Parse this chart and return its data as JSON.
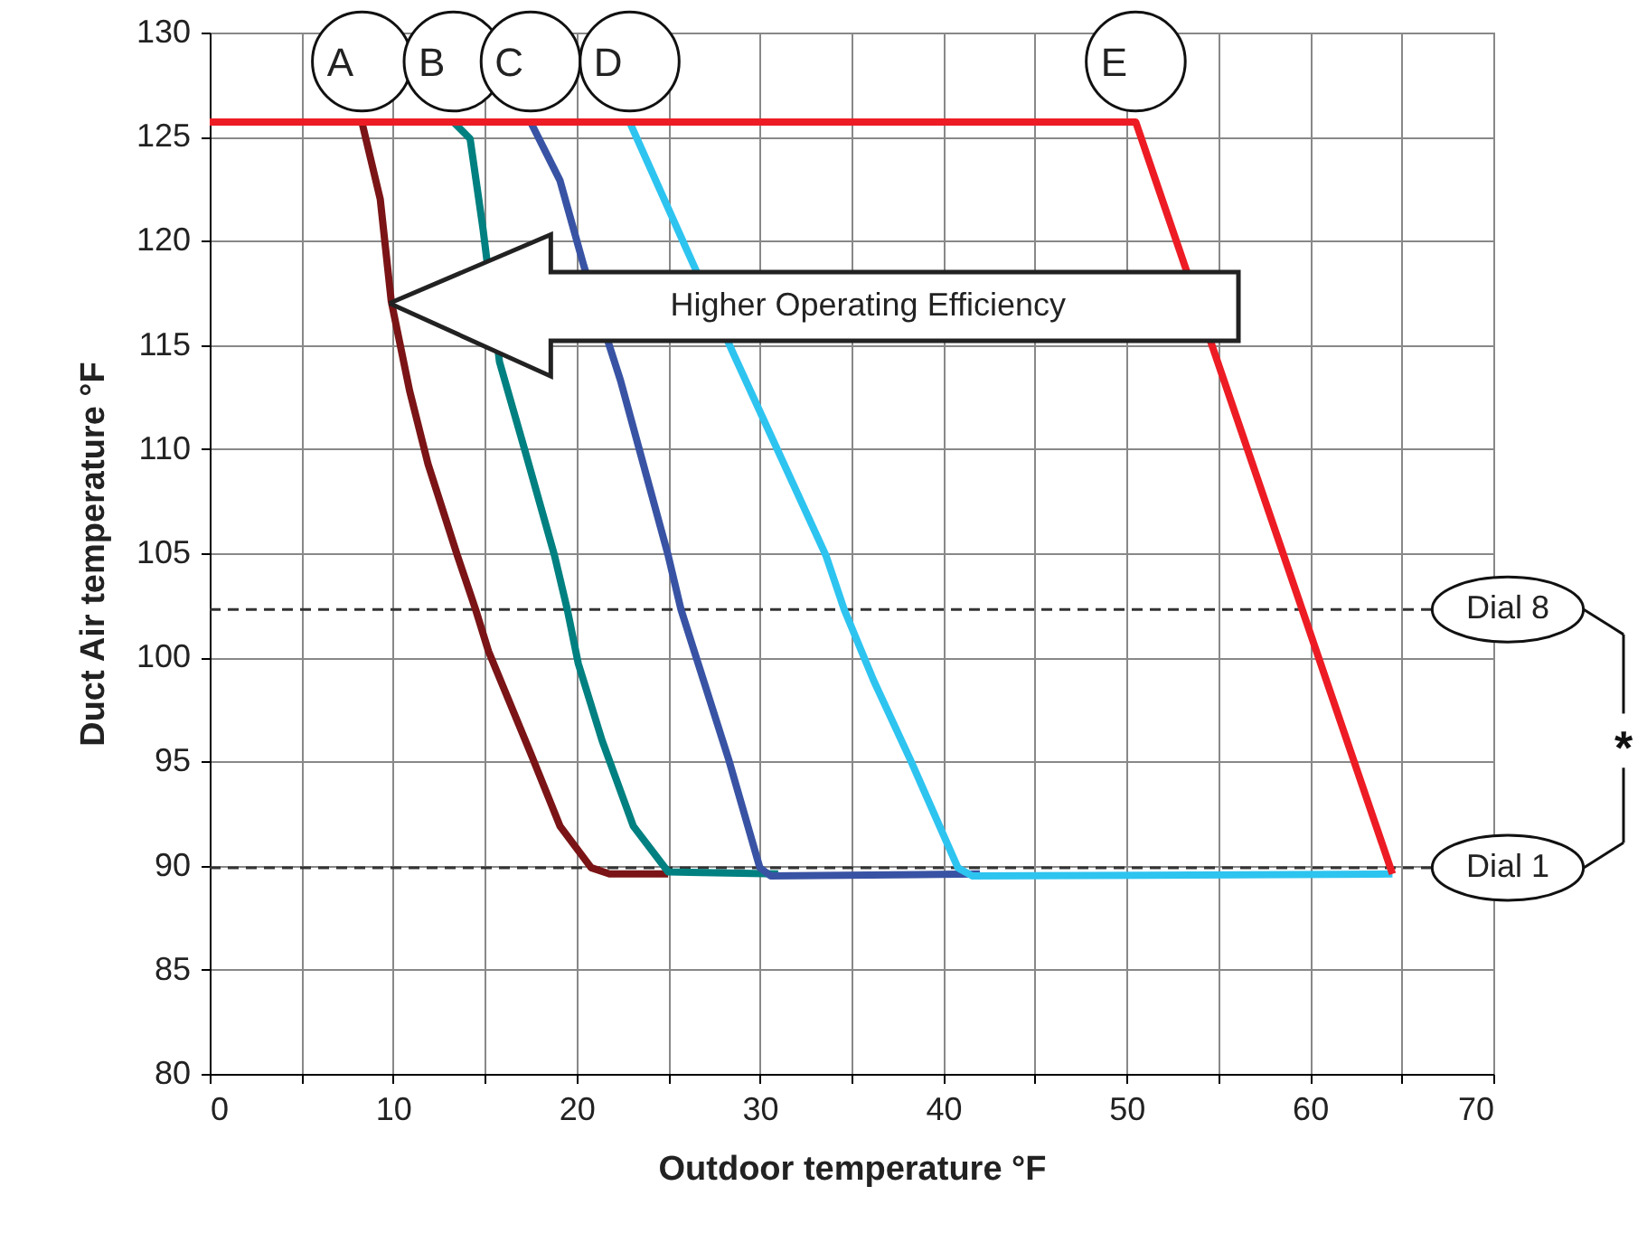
{
  "chart_data": {
    "type": "line",
    "xlabel": "Outdoor temperature °F",
    "ylabel": "Duct Air temperature °F",
    "xlim": [
      0,
      70
    ],
    "ylim": [
      80,
      130
    ],
    "xticks": [
      0,
      {
        "value": 5,
        "label": null
      },
      10,
      {
        "value": 15,
        "label": null
      },
      20,
      {
        "value": 25,
        "label": null
      },
      30,
      {
        "value": 35,
        "label": null
      },
      40,
      {
        "value": 45,
        "label": null
      },
      50,
      {
        "value": 55,
        "label": null
      },
      60,
      {
        "value": 65,
        "label": null
      },
      70
    ],
    "yticks": [
      80,
      85,
      90,
      95,
      100,
      105,
      110,
      115,
      120,
      125,
      130
    ],
    "grid": true,
    "line_style": "solid",
    "marker": "none",
    "series": [
      {
        "name": "A",
        "color": "#7b1416",
        "x": [
          8.3,
          9.3,
          9.9,
          10.9,
          11.9,
          13.5,
          14.5,
          15.2,
          17.5,
          19.1,
          20.8,
          21.8,
          25.0
        ],
        "values": [
          125.7,
          122.0,
          117.1,
          112.8,
          109.3,
          104.9,
          102.3,
          100.3,
          95.4,
          91.9,
          89.9,
          89.6,
          89.6
        ]
      },
      {
        "name": "B",
        "color": "#008080",
        "x": [
          13.3,
          14.2,
          14.9,
          15.8,
          17.2,
          18.8,
          19.5,
          20.1,
          21.4,
          23.1,
          25.0,
          31.0
        ],
        "values": [
          125.7,
          124.9,
          120.6,
          114.2,
          109.9,
          104.9,
          102.3,
          99.7,
          96.0,
          91.9,
          89.7,
          89.6
        ]
      },
      {
        "name": "C",
        "color": "#3953a4",
        "x": [
          17.5,
          19.1,
          20.4,
          22.4,
          25.0,
          25.7,
          28.3,
          30.0,
          30.6,
          42.0
        ],
        "values": [
          125.7,
          122.9,
          118.8,
          113.3,
          104.9,
          102.3,
          95.1,
          89.9,
          89.5,
          89.6
        ]
      },
      {
        "name": "D",
        "color": "#2ec4f0",
        "x": [
          22.9,
          26.0,
          28.6,
          33.6,
          34.6,
          36.2,
          38.2,
          39.8,
          40.8,
          41.6,
          64.5
        ],
        "values": [
          125.7,
          119.6,
          114.5,
          104.9,
          102.3,
          98.9,
          95.1,
          91.9,
          89.9,
          89.5,
          89.6
        ]
      },
      {
        "name": "E",
        "color": "#ed1c24",
        "x": [
          0,
          50.5,
          64.5
        ],
        "values": [
          125.7,
          125.7,
          89.6
        ]
      }
    ],
    "ref_lines": [
      {
        "axis": "y",
        "value": 102.3,
        "label": "Dial 8",
        "color": "#333333",
        "line_style": "dashed"
      },
      {
        "axis": "y",
        "value": 89.9,
        "label": "Dial 1",
        "color": "#333333",
        "line_style": "dashed"
      }
    ],
    "annotations": [
      "Higher Operating Efficiency",
      "*"
    ]
  }
}
